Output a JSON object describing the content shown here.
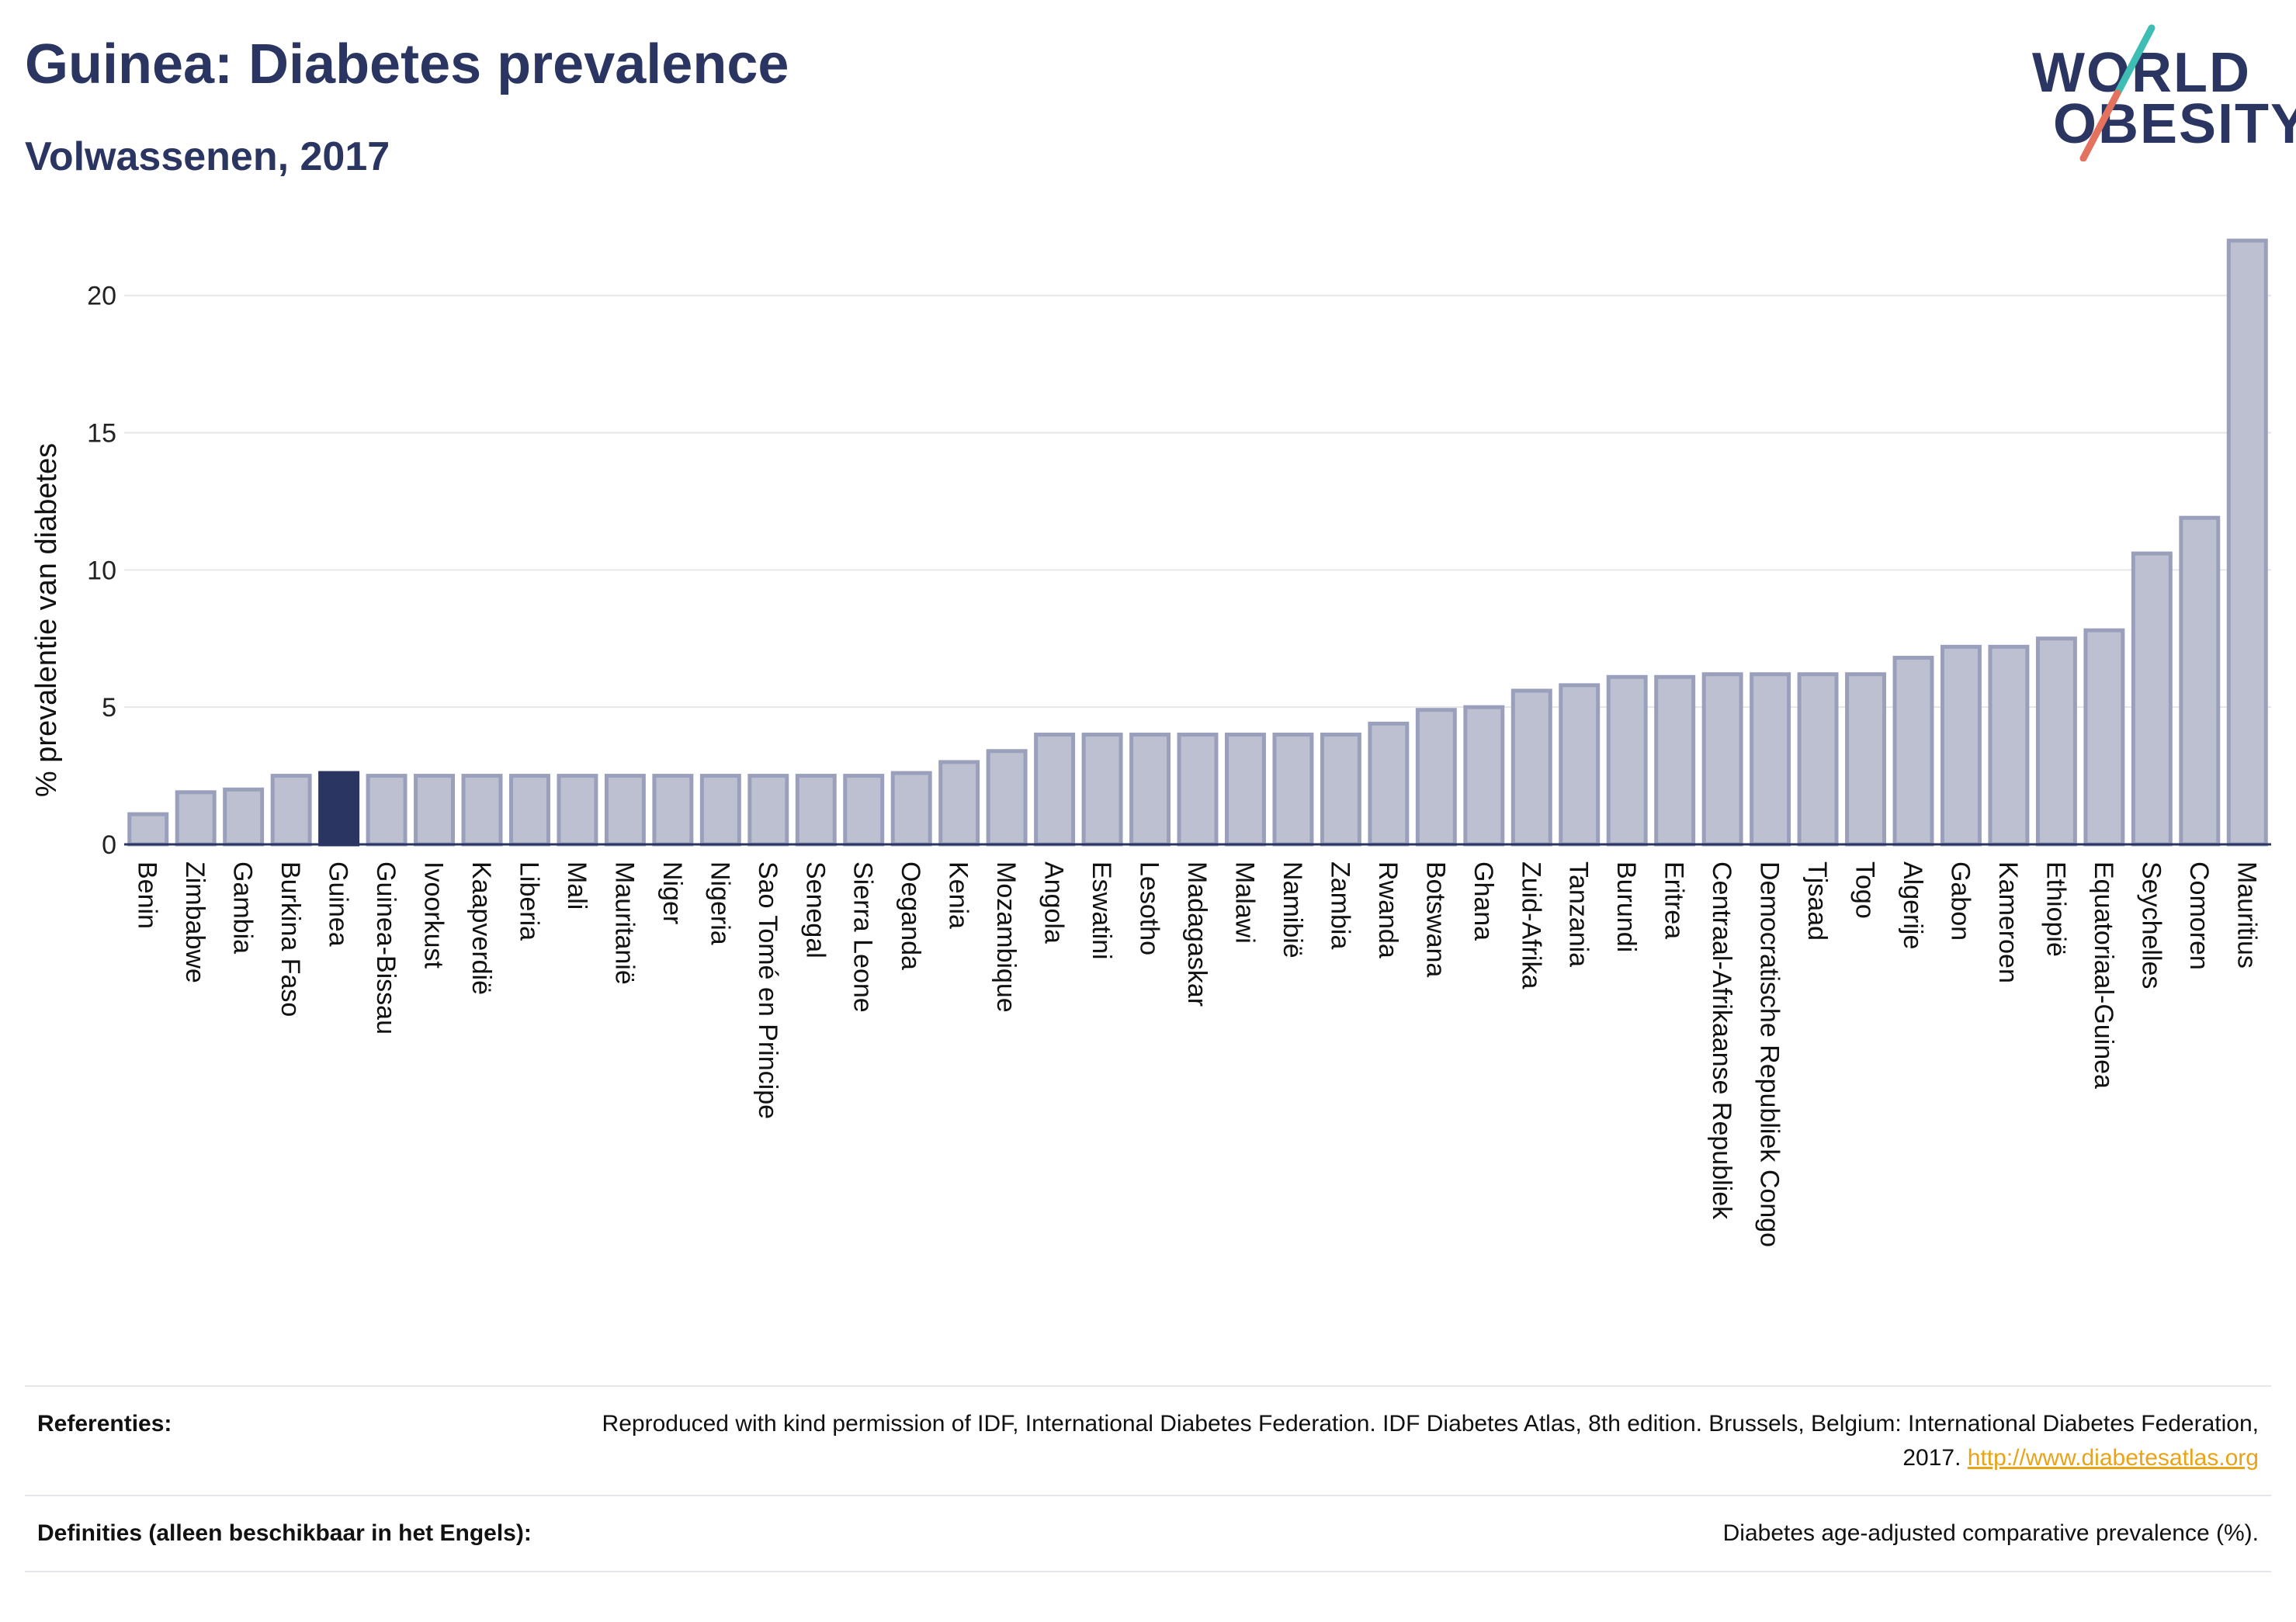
{
  "header": {
    "title": "Guinea: Diabetes prevalence",
    "subtitle": "Volwassenen, 2017"
  },
  "logo": {
    "line1": "WORLD",
    "line2": "OBESITY",
    "colors": {
      "text": "#2a3561",
      "slash_top": "#3dbdb3",
      "slash_bottom": "#e3725f"
    }
  },
  "colors": {
    "bar_fill": "#bcc0d0",
    "bar_stroke": "#9aa0bb",
    "highlight": "#2a3561",
    "grid": "#e6e6ea",
    "axis": "#2a3561"
  },
  "chart_data": {
    "type": "bar",
    "title": "Guinea: Diabetes prevalence",
    "subtitle": "Volwassenen, 2017",
    "xlabel": "",
    "ylabel": "% prevalentie van diabetes",
    "ylim": [
      0,
      22
    ],
    "yticks": [
      0,
      5,
      10,
      15,
      20
    ],
    "grid": true,
    "highlight": "Guinea",
    "categories": [
      "Benin",
      "Zimbabwe",
      "Gambia",
      "Burkina Faso",
      "Guinea",
      "Guinea-Bissau",
      "Ivoorkust",
      "Kaapverdië",
      "Liberia",
      "Mali",
      "Mauritanië",
      "Niger",
      "Nigeria",
      "Sao Tomé en Principe",
      "Senegal",
      "Sierra Leone",
      "Oeganda",
      "Kenia",
      "Mozambique",
      "Angola",
      "Eswatini",
      "Lesotho",
      "Madagaskar",
      "Malawi",
      "Namibië",
      "Zambia",
      "Rwanda",
      "Botswana",
      "Ghana",
      "Zuid-Afrika",
      "Tanzania",
      "Burundi",
      "Eritrea",
      "Centraal-Afrikaanse Republiek",
      "Democratische Republiek Congo",
      "Tjsaad",
      "Togo",
      "Algerije",
      "Gabon",
      "Kameroen",
      "Ethiopië",
      "Equatoriaal-Guinea",
      "Seychelles",
      "Comoren",
      "Mauritius"
    ],
    "values": [
      1.1,
      1.9,
      2.0,
      2.5,
      2.6,
      2.5,
      2.5,
      2.5,
      2.5,
      2.5,
      2.5,
      2.5,
      2.5,
      2.5,
      2.5,
      2.5,
      2.6,
      3.0,
      3.4,
      4.0,
      4.0,
      4.0,
      4.0,
      4.0,
      4.0,
      4.0,
      4.4,
      4.9,
      5.0,
      5.6,
      5.8,
      6.1,
      6.1,
      6.2,
      6.2,
      6.2,
      6.2,
      6.8,
      7.2,
      7.2,
      7.5,
      7.8,
      10.6,
      11.9,
      22.0
    ]
  },
  "references": {
    "label": "Referenties:",
    "text": "Reproduced with kind permission of IDF, International Diabetes Federation. IDF Diabetes Atlas, 8th edition. Brussels, Belgium: International Diabetes Federation, 2017.",
    "link": "http://www.diabetesatlas.org"
  },
  "definitions": {
    "label": "Definities (alleen beschikbaar in het Engels):",
    "text": "Diabetes age-adjusted comparative prevalence (%)."
  }
}
